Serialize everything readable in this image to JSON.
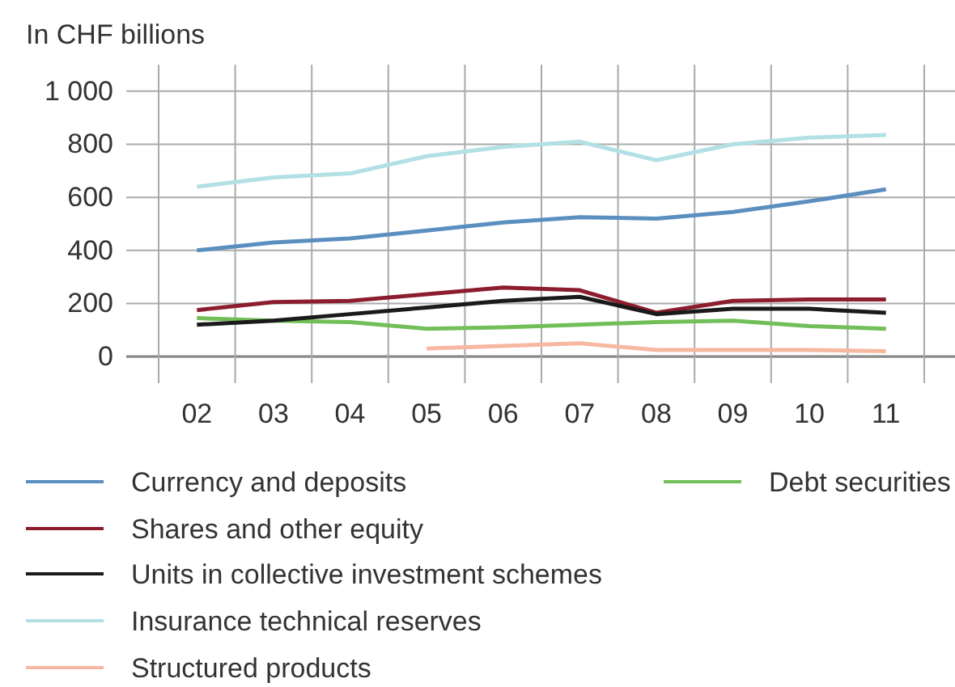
{
  "chart_data": {
    "type": "line",
    "ylabel": "In CHF billions",
    "categories": [
      "02",
      "03",
      "04",
      "05",
      "06",
      "07",
      "08",
      "09",
      "10",
      "11"
    ],
    "ylim": [
      -100,
      1100
    ],
    "yticks": [
      0,
      200,
      400,
      600,
      800,
      {
        "value": 1000,
        "label": "1 000"
      }
    ],
    "grid": true,
    "legend": "bottom",
    "marker": "none",
    "line_style": "solid",
    "series": [
      {
        "name": "Currency and deposits",
        "color": "#5b8fbf",
        "values": [
          400,
          430,
          445,
          475,
          505,
          525,
          520,
          545,
          585,
          630
        ]
      },
      {
        "name": "Debt securities",
        "color": "#72bf5a",
        "values": [
          145,
          135,
          130,
          105,
          110,
          120,
          130,
          135,
          115,
          105
        ]
      },
      {
        "name": "Shares and other equity",
        "color": "#8c1d2e",
        "values": [
          175,
          205,
          210,
          235,
          260,
          250,
          165,
          210,
          215,
          215
        ]
      },
      {
        "name": "Units in collective investment schemes",
        "color": "#1a1a1a",
        "values": [
          120,
          135,
          160,
          185,
          210,
          225,
          160,
          180,
          180,
          165
        ]
      },
      {
        "name": "Insurance technical reserves",
        "color": "#b3e0e4",
        "values": [
          640,
          675,
          690,
          755,
          790,
          810,
          740,
          800,
          825,
          835
        ]
      },
      {
        "name": "Structured products",
        "color": "#f7b8a2",
        "values": [
          null,
          null,
          null,
          30,
          40,
          50,
          25,
          25,
          25,
          20
        ]
      }
    ]
  }
}
